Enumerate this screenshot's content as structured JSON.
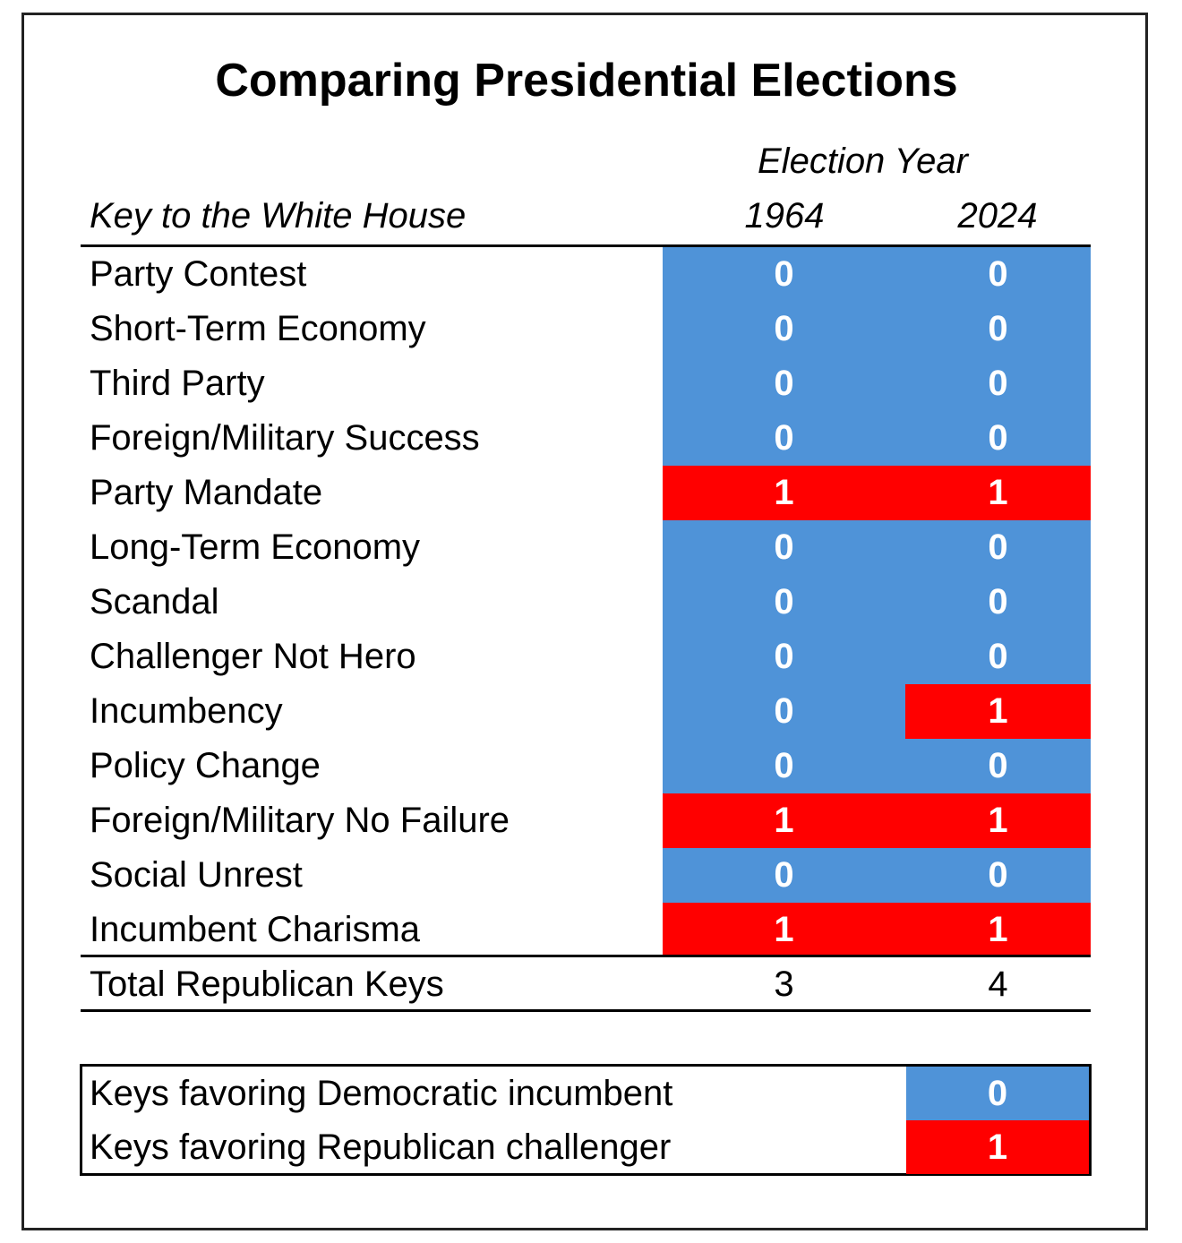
{
  "colors": {
    "democratic": "#4f93d8",
    "republican": "#ff0000"
  },
  "chart_data": {
    "type": "table",
    "title": "Comparing Presidential Elections",
    "group_header": "Election Year",
    "row_header": "Key to the White House",
    "columns": [
      "1964",
      "2024"
    ],
    "rows": [
      {
        "label": "Party Contest",
        "values": [
          "0",
          "0"
        ]
      },
      {
        "label": "Short-Term Economy",
        "values": [
          "0",
          "0"
        ]
      },
      {
        "label": "Third Party",
        "values": [
          "0",
          "0"
        ]
      },
      {
        "label": "Foreign/Military Success",
        "values": [
          "0",
          "0"
        ]
      },
      {
        "label": "Party Mandate",
        "values": [
          "1",
          "1"
        ]
      },
      {
        "label": "Long-Term Economy",
        "values": [
          "0",
          "0"
        ]
      },
      {
        "label": "Scandal",
        "values": [
          "0",
          "0"
        ]
      },
      {
        "label": "Challenger Not Hero",
        "values": [
          "0",
          "0"
        ]
      },
      {
        "label": "Incumbency",
        "values": [
          "0",
          "1"
        ]
      },
      {
        "label": "Policy Change",
        "values": [
          "0",
          "0"
        ]
      },
      {
        "label": "Foreign/Military No Failure",
        "values": [
          "1",
          "1"
        ]
      },
      {
        "label": "Social Unrest",
        "values": [
          "0",
          "0"
        ]
      },
      {
        "label": "Incumbent Charisma",
        "values": [
          "1",
          "1"
        ]
      }
    ],
    "total": {
      "label": "Total Republican Keys",
      "values": [
        "3",
        "4"
      ]
    },
    "legend": [
      {
        "label": "Keys favoring Democratic incumbent",
        "value": "0"
      },
      {
        "label": "Keys favoring Republican challenger",
        "value": "1"
      }
    ]
  }
}
